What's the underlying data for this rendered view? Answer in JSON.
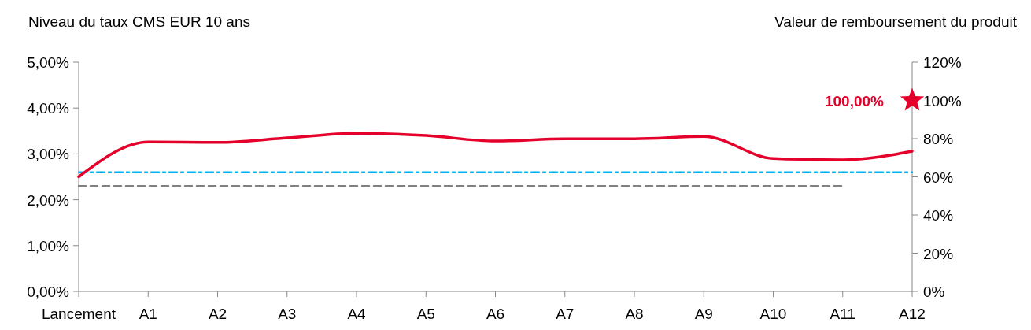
{
  "chart_data": {
    "type": "line",
    "ylabel": "Niveau du taux CMS EUR 10 ans",
    "y2label": "Valeur de remboursement du produit",
    "categories": [
      "Lancement",
      "A1",
      "A2",
      "A3",
      "A4",
      "A5",
      "A6",
      "A7",
      "A8",
      "A9",
      "A10",
      "A11",
      "A12"
    ],
    "ylim": [
      0,
      5
    ],
    "yticks": [
      {
        "value": 0,
        "label": "0,00%"
      },
      {
        "value": 1,
        "label": "1,00%"
      },
      {
        "value": 2,
        "label": "2,00%"
      },
      {
        "value": 3,
        "label": "3,00%"
      },
      {
        "value": 4,
        "label": "4,00%"
      },
      {
        "value": 5,
        "label": "5,00%"
      }
    ],
    "y2lim": [
      0,
      120
    ],
    "y2ticks": [
      {
        "value": 0,
        "label": "0%"
      },
      {
        "value": 20,
        "label": "20%"
      },
      {
        "value": 40,
        "label": "40%"
      },
      {
        "value": 60,
        "label": "60%"
      },
      {
        "value": 80,
        "label": "80%"
      },
      {
        "value": 100,
        "label": "100%"
      },
      {
        "value": 120,
        "label": "120%"
      }
    ],
    "series": [
      {
        "color": "#00b0f0",
        "line_style": "dashdot",
        "values": [
          2.6,
          2.6,
          2.6,
          2.6,
          2.6,
          2.6,
          2.6,
          2.6,
          2.6,
          2.6,
          2.6,
          2.6,
          2.6
        ]
      },
      {
        "color": "#808080",
        "line_style": "dashed",
        "values": [
          2.3,
          2.3,
          2.3,
          2.3,
          2.3,
          2.3,
          2.3,
          2.3,
          2.3,
          2.3,
          2.3,
          2.3,
          null
        ]
      },
      {
        "color": "#e4002b",
        "line_style": "solid",
        "values": [
          2.5,
          3.26,
          3.25,
          3.35,
          3.45,
          3.4,
          3.28,
          3.33,
          3.33,
          3.38,
          2.9,
          2.87,
          3.06
        ]
      },
      {
        "type": "scatter",
        "axis": "y2",
        "color": "#e4002b",
        "marker": "star",
        "values": [
          null,
          null,
          null,
          null,
          null,
          null,
          null,
          null,
          null,
          null,
          null,
          null,
          100
        ],
        "value_labels": [
          null,
          null,
          null,
          null,
          null,
          null,
          null,
          null,
          null,
          null,
          null,
          null,
          "100,00%"
        ]
      }
    ],
    "grid": false
  }
}
